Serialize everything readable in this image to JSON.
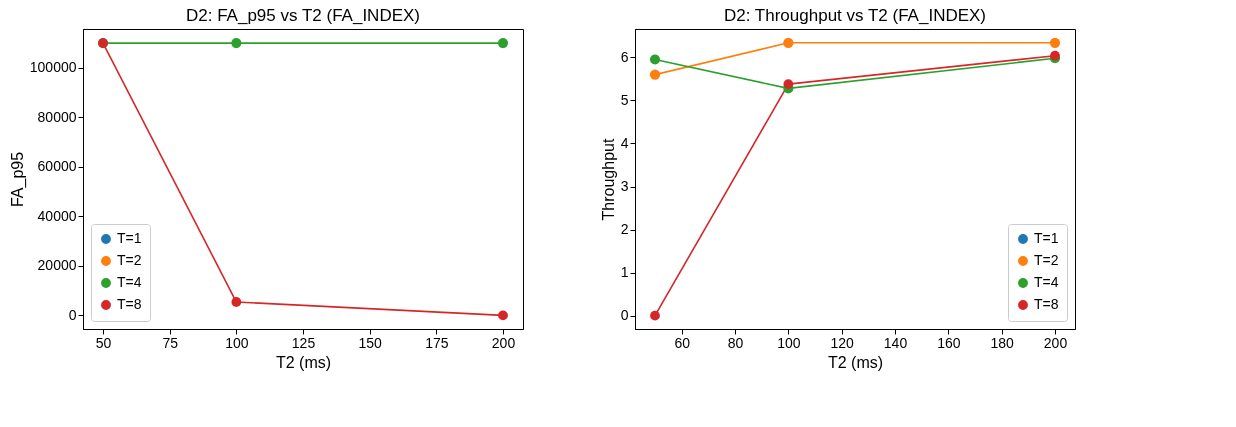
{
  "chart_data": [
    {
      "type": "line",
      "title": "D2: FA_p95 vs T2 (FA_INDEX)",
      "xlabel": "T2 (ms)",
      "ylabel": "FA_p95",
      "x": [
        50,
        100,
        200
      ],
      "series": [
        {
          "name": "T=1",
          "color": "#1f77b4",
          "values": [
            null,
            null,
            null
          ]
        },
        {
          "name": "T=2",
          "color": "#ff7f0e",
          "values": [
            null,
            null,
            null
          ]
        },
        {
          "name": "T=4",
          "color": "#2ca02c",
          "values": [
            110000,
            110000,
            110000
          ]
        },
        {
          "name": "T=8",
          "color": "#d62728",
          "values": [
            110000,
            5400,
            0
          ]
        }
      ],
      "xlim": [
        42.5,
        207.5
      ],
      "xticks": [
        50,
        75,
        100,
        125,
        150,
        175,
        200
      ],
      "ylim": [
        -5500,
        115700
      ],
      "yticks": [
        0,
        20000,
        40000,
        60000,
        80000,
        100000
      ],
      "legend": "bottom left",
      "marker": "circle",
      "grid": false
    },
    {
      "type": "line",
      "title": "D2: Throughput vs T2 (FA_INDEX)",
      "xlabel": "T2 (ms)",
      "ylabel": "Throughput",
      "x": [
        50,
        100,
        200
      ],
      "series": [
        {
          "name": "T=1",
          "color": "#1f77b4",
          "values": [
            null,
            null,
            null
          ]
        },
        {
          "name": "T=2",
          "color": "#ff7f0e",
          "values": [
            5.6,
            6.34,
            6.34
          ]
        },
        {
          "name": "T=4",
          "color": "#2ca02c",
          "values": [
            5.95,
            5.28,
            5.98
          ]
        },
        {
          "name": "T=8",
          "color": "#d62728",
          "values": [
            0,
            5.38,
            6.04
          ]
        }
      ],
      "xlim": [
        42.5,
        207.5
      ],
      "xticks": [
        60,
        80,
        100,
        120,
        140,
        160,
        180,
        200
      ],
      "ylim": [
        -0.31,
        6.66
      ],
      "yticks": [
        0,
        1,
        2,
        3,
        4,
        5,
        6
      ],
      "legend": "bottom right",
      "marker": "circle",
      "grid": false
    }
  ]
}
